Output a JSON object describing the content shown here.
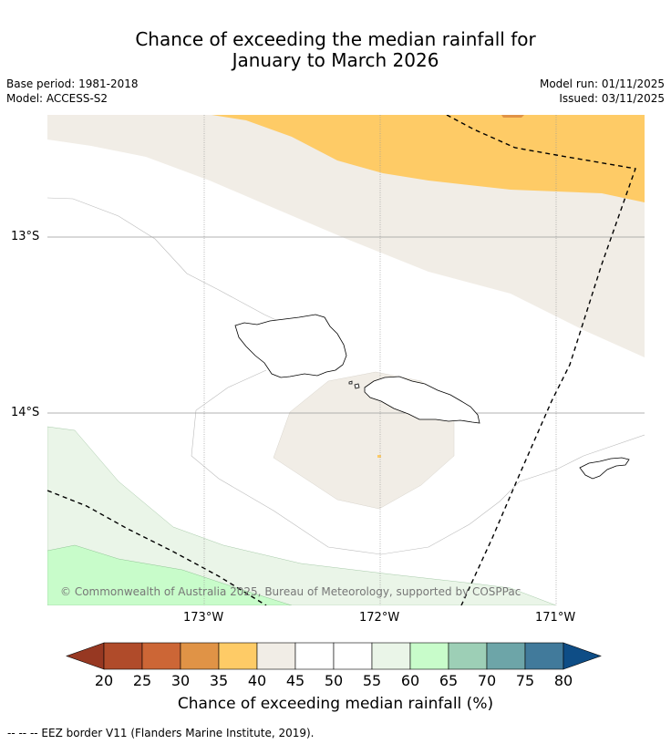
{
  "title": {
    "line1": "Chance of exceeding the median rainfall for",
    "line2": "January to March 2026"
  },
  "meta": {
    "base_period": "Base period: 1981-2018",
    "model": "Model: ACCESS-S2",
    "model_run": "Model run: 01/11/2025",
    "issued": "Issued: 03/11/2025"
  },
  "map": {
    "lat_labels": [
      "13°S",
      "14°S"
    ],
    "lon_labels": [
      "173°W",
      "172°W",
      "171°W"
    ],
    "copyright": "© Commonwealth of Australia 2025, Bureau of Meteorology, supported by COSPPac",
    "colors": {
      "band_35_40": "#fecb66",
      "band_30_35": "#e09346",
      "band_40_45": "#f1ede6",
      "band_45_55": "#ffffff",
      "band_55_60": "#eaf5e8",
      "band_60_65": "#c8fcca"
    }
  },
  "colorbar": {
    "title": "Chance of exceeding median rainfall (%)",
    "ticks": [
      "20",
      "25",
      "30",
      "35",
      "40",
      "45",
      "50",
      "55",
      "60",
      "65",
      "70",
      "75",
      "80"
    ],
    "below_color": "#973822",
    "above_color": "#0e4d86",
    "colors": [
      "#b04b2a",
      "#cc6636",
      "#e09346",
      "#fecb66",
      "#f1ede6",
      "#ffffff",
      "#ffffff",
      "#eaf5e8",
      "#c8fcca",
      "#9dcfb6",
      "#6da5a8",
      "#417a9b"
    ]
  },
  "footer": {
    "eez_note": "--  --  -- EEZ border V11 (Flanders Marine Institute, 2019)."
  }
}
